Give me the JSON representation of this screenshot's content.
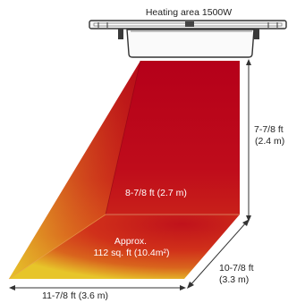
{
  "title": "Heating area 1500W",
  "heater": {
    "name": "heater-unit"
  },
  "dimensions": {
    "height_line1": "7-7/8 ft",
    "height_line2": "(2.4 m)",
    "back_wall": "8-7/8 ft (2.7 m)",
    "area_line1": "Approx.",
    "area_line2": "112 sq. ft (10.4m²)",
    "depth_line1": "10-7/8 ft",
    "depth_line2": "(3.3 m)",
    "width": "11-7/8 ft (3.6 m)"
  },
  "colors": {
    "deep_red": "#b3001a",
    "red": "#c4141b",
    "orange": "#d9541c",
    "yellow": "#e7c52a",
    "heater_body": "#3a3a3a",
    "heater_light": "#f2f2f2",
    "dimension_line": "#333333"
  }
}
